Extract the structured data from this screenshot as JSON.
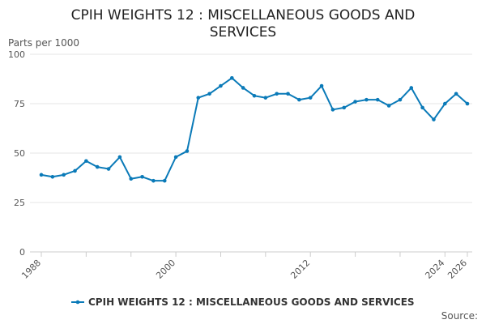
{
  "chart_data": {
    "type": "line",
    "title_lines": [
      "CPIH WEIGHTS 12 : MISCELLANEOUS GOODS AND",
      "SERVICES"
    ],
    "ylabel": "Parts per 1000",
    "xlabel": "",
    "ylim": [
      0,
      100
    ],
    "yticks": [
      0,
      25,
      50,
      75,
      100
    ],
    "xticks": [
      "1988",
      "2000",
      "2012",
      "2024",
      "2026"
    ],
    "grid": true,
    "legend_position": "bottom",
    "source_label": "Source:",
    "colors": {
      "series": "#0a7ab8"
    },
    "x": [
      "1988",
      "1989",
      "1990",
      "1991",
      "1992",
      "1993",
      "1994",
      "1995",
      "1996",
      "1997",
      "1998",
      "1999",
      "2000",
      "2001",
      "2002",
      "2003",
      "2004",
      "2005",
      "2006",
      "2007",
      "2008",
      "2009",
      "2010",
      "2011",
      "2012",
      "2013",
      "2014",
      "2015",
      "2016",
      "2017",
      "2018",
      "2019",
      "2020",
      "2021",
      "2022",
      "2023",
      "2024",
      "2025",
      "2026"
    ],
    "series": [
      {
        "name": "CPIH WEIGHTS 12 : MISCELLANEOUS GOODS AND SERVICES",
        "values": [
          39,
          38,
          39,
          41,
          46,
          43,
          42,
          48,
          37,
          38,
          36,
          36,
          48,
          51,
          78,
          80,
          84,
          88,
          83,
          79,
          78,
          80,
          80,
          77,
          78,
          84,
          72,
          73,
          76,
          77,
          77,
          74,
          77,
          83,
          73,
          67,
          75,
          80,
          75
        ]
      }
    ]
  }
}
